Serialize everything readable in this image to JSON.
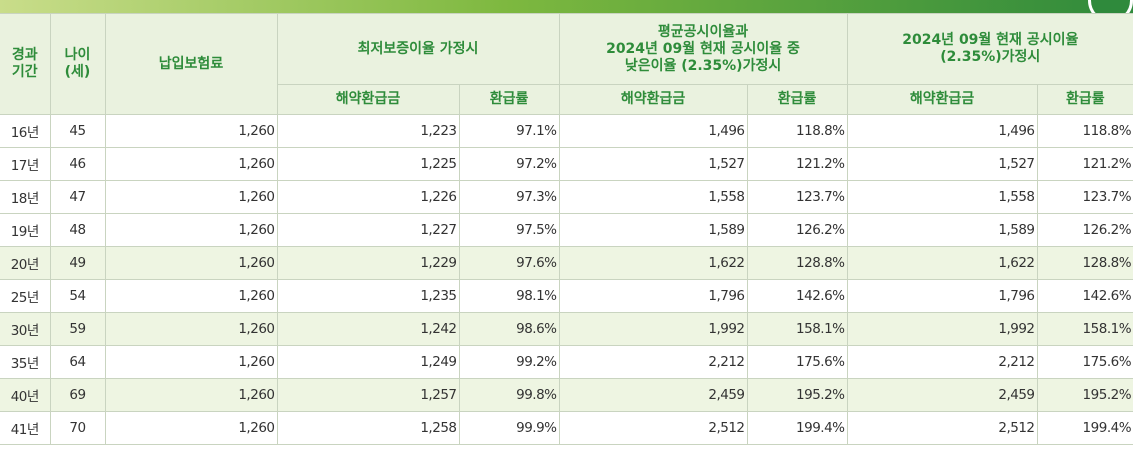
{
  "header": {
    "period": "경과\n기간",
    "age": "나이\n(세)",
    "premium": "납입보험료",
    "scenario1": "최저보증이율 가정시",
    "scenario2": "평균공시이율과\n2024년 09월 현재 공시이율 중\n낮은이율 (2.35%)가정시",
    "scenario3": "2024년 09월 현재 공시이율\n(2.35%)가정시",
    "surrender": "해약환급금",
    "rate": "환급률"
  },
  "rows": [
    {
      "period": "16년",
      "age": "45",
      "premium": "1,260",
      "s1_amt": "1,223",
      "s1_rate": "97.1%",
      "s2_amt": "1,496",
      "s2_rate": "118.8%",
      "s3_amt": "1,496",
      "s3_rate": "118.8%",
      "highlight": false
    },
    {
      "period": "17년",
      "age": "46",
      "premium": "1,260",
      "s1_amt": "1,225",
      "s1_rate": "97.2%",
      "s2_amt": "1,527",
      "s2_rate": "121.2%",
      "s3_amt": "1,527",
      "s3_rate": "121.2%",
      "highlight": false
    },
    {
      "period": "18년",
      "age": "47",
      "premium": "1,260",
      "s1_amt": "1,226",
      "s1_rate": "97.3%",
      "s2_amt": "1,558",
      "s2_rate": "123.7%",
      "s3_amt": "1,558",
      "s3_rate": "123.7%",
      "highlight": false
    },
    {
      "period": "19년",
      "age": "48",
      "premium": "1,260",
      "s1_amt": "1,227",
      "s1_rate": "97.5%",
      "s2_amt": "1,589",
      "s2_rate": "126.2%",
      "s3_amt": "1,589",
      "s3_rate": "126.2%",
      "highlight": false
    },
    {
      "period": "20년",
      "age": "49",
      "premium": "1,260",
      "s1_amt": "1,229",
      "s1_rate": "97.6%",
      "s2_amt": "1,622",
      "s2_rate": "128.8%",
      "s3_amt": "1,622",
      "s3_rate": "128.8%",
      "highlight": true
    },
    {
      "period": "25년",
      "age": "54",
      "premium": "1,260",
      "s1_amt": "1,235",
      "s1_rate": "98.1%",
      "s2_amt": "1,796",
      "s2_rate": "142.6%",
      "s3_amt": "1,796",
      "s3_rate": "142.6%",
      "highlight": false
    },
    {
      "period": "30년",
      "age": "59",
      "premium": "1,260",
      "s1_amt": "1,242",
      "s1_rate": "98.6%",
      "s2_amt": "1,992",
      "s2_rate": "158.1%",
      "s3_amt": "1,992",
      "s3_rate": "158.1%",
      "highlight": true
    },
    {
      "period": "35년",
      "age": "64",
      "premium": "1,260",
      "s1_amt": "1,249",
      "s1_rate": "99.2%",
      "s2_amt": "2,212",
      "s2_rate": "175.6%",
      "s3_amt": "2,212",
      "s3_rate": "175.6%",
      "highlight": false
    },
    {
      "period": "40년",
      "age": "69",
      "premium": "1,260",
      "s1_amt": "1,257",
      "s1_rate": "99.8%",
      "s2_amt": "2,459",
      "s2_rate": "195.2%",
      "s3_amt": "2,459",
      "s3_rate": "195.2%",
      "highlight": true
    },
    {
      "period": "41년",
      "age": "70",
      "premium": "1,260",
      "s1_amt": "1,258",
      "s1_rate": "99.9%",
      "s2_amt": "2,512",
      "s2_rate": "199.4%",
      "s3_amt": "2,512",
      "s3_rate": "199.4%",
      "highlight": false
    }
  ],
  "colors": {
    "header_bg": "#eaf2df",
    "header_text": "#2e8c3a",
    "highlight_row": "#eef5e2",
    "border": "#c9d4c0",
    "accent": "#2f8a3c"
  }
}
